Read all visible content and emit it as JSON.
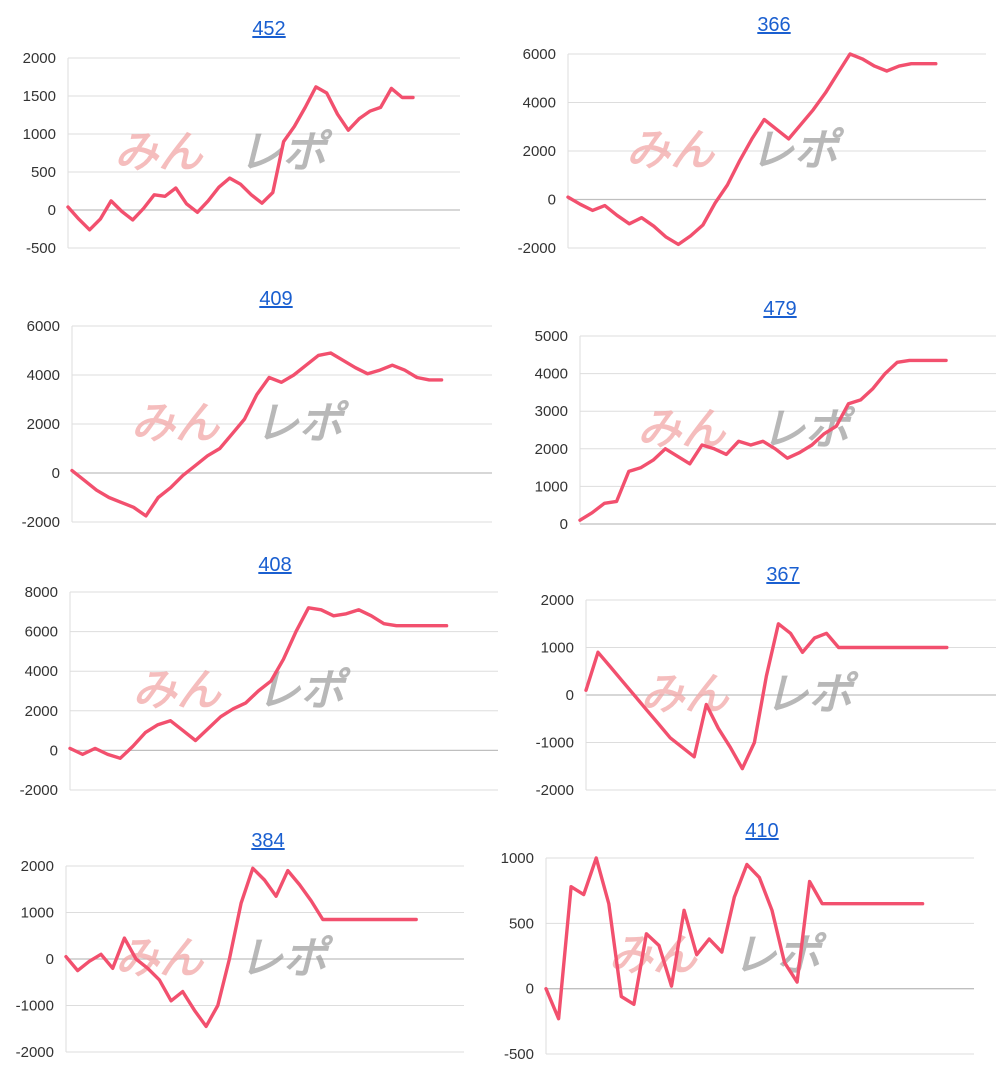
{
  "chart_data": [
    {
      "id": "c452",
      "type": "line",
      "title": "452",
      "ylim": [
        -500,
        2000
      ],
      "yticks": [
        -500,
        0,
        500,
        1000,
        1500,
        2000
      ],
      "grid": true,
      "watermark": "みんレポ",
      "x": [
        0,
        1,
        2,
        3,
        4,
        5,
        6,
        7,
        8,
        9,
        10,
        11,
        12,
        13,
        14,
        15,
        16,
        17,
        18,
        19,
        20,
        21,
        22,
        23,
        24,
        25,
        26,
        27,
        28,
        29,
        30,
        31,
        32
      ],
      "series": [
        {
          "values": [
            40,
            -120,
            -260,
            -120,
            120,
            -20,
            -130,
            20,
            200,
            180,
            290,
            80,
            -30,
            120,
            300,
            420,
            340,
            200,
            90,
            230,
            900,
            1100,
            1350,
            1620,
            1540,
            1260,
            1050,
            1200,
            1300,
            1350,
            1600,
            1480,
            1480
          ]
        }
      ]
    },
    {
      "id": "c366",
      "type": "line",
      "title": "366",
      "ylim": [
        -2000,
        6000
      ],
      "yticks": [
        -2000,
        0,
        2000,
        4000,
        6000
      ],
      "grid": true,
      "watermark": "みんレポ",
      "x": [
        0,
        1,
        2,
        3,
        4,
        5,
        6,
        7,
        8,
        9,
        10,
        11,
        12,
        13,
        14,
        15,
        16,
        17,
        18,
        19,
        20,
        21,
        22,
        23,
        24,
        25,
        26,
        27,
        28,
        29,
        30
      ],
      "series": [
        {
          "values": [
            100,
            -200,
            -450,
            -250,
            -650,
            -1000,
            -750,
            -1100,
            -1550,
            -1850,
            -1500,
            -1050,
            -150,
            600,
            1600,
            2500,
            3300,
            2900,
            2500,
            3100,
            3700,
            4400,
            5200,
            6000,
            5800,
            5500,
            5300,
            5500,
            5600,
            5600,
            5600
          ]
        }
      ]
    },
    {
      "id": "c409",
      "type": "line",
      "title": "409",
      "ylim": [
        -2000,
        6000
      ],
      "yticks": [
        -2000,
        0,
        2000,
        4000,
        6000
      ],
      "grid": true,
      "watermark": "みんレポ",
      "x": [
        0,
        1,
        2,
        3,
        4,
        5,
        6,
        7,
        8,
        9,
        10,
        11,
        12,
        13,
        14,
        15,
        16,
        17,
        18,
        19,
        20,
        21,
        22,
        23,
        24,
        25,
        26,
        27,
        28,
        29,
        30
      ],
      "series": [
        {
          "values": [
            100,
            -300,
            -700,
            -1000,
            -1200,
            -1400,
            -1750,
            -1000,
            -600,
            -100,
            300,
            700,
            1000,
            1600,
            2200,
            3200,
            3900,
            3700,
            4000,
            4400,
            4800,
            4900,
            4600,
            4300,
            4050,
            4200,
            4400,
            4200,
            3900,
            3800,
            3800
          ]
        }
      ]
    },
    {
      "id": "c479",
      "type": "line",
      "title": "479",
      "ylim": [
        0,
        5000
      ],
      "yticks": [
        0,
        1000,
        2000,
        3000,
        4000,
        5000
      ],
      "grid": true,
      "watermark": "みんレポ",
      "x": [
        0,
        1,
        2,
        3,
        4,
        5,
        6,
        7,
        8,
        9,
        10,
        11,
        12,
        13,
        14,
        15,
        16,
        17,
        18,
        19,
        20,
        21,
        22,
        23,
        24,
        25,
        26,
        27,
        28,
        29,
        30
      ],
      "series": [
        {
          "values": [
            100,
            300,
            550,
            600,
            1400,
            1500,
            1700,
            2000,
            1800,
            1600,
            2100,
            2000,
            1850,
            2200,
            2100,
            2200,
            2000,
            1750,
            1900,
            2100,
            2400,
            2600,
            3200,
            3300,
            3600,
            4000,
            4300,
            4350,
            4350,
            4350,
            4350
          ]
        }
      ]
    },
    {
      "id": "c408",
      "type": "line",
      "title": "408",
      "ylim": [
        -2000,
        8000
      ],
      "yticks": [
        -2000,
        0,
        2000,
        4000,
        6000,
        8000
      ],
      "grid": true,
      "watermark": "みんレポ",
      "x": [
        0,
        1,
        2,
        3,
        4,
        5,
        6,
        7,
        8,
        9,
        10,
        11,
        12,
        13,
        14,
        15,
        16,
        17,
        18,
        19,
        20,
        21,
        22,
        23,
        24,
        25,
        26,
        27,
        28,
        29,
        30
      ],
      "series": [
        {
          "values": [
            100,
            -200,
            100,
            -200,
            -400,
            200,
            900,
            1300,
            1500,
            1000,
            500,
            1100,
            1700,
            2100,
            2400,
            3000,
            3500,
            4600,
            6000,
            7200,
            7100,
            6800,
            6900,
            7100,
            6800,
            6400,
            6300,
            6300,
            6300,
            6300,
            6300
          ]
        }
      ]
    },
    {
      "id": "c367",
      "type": "line",
      "title": "367",
      "ylim": [
        -2000,
        2000
      ],
      "yticks": [
        -2000,
        -1000,
        0,
        1000,
        2000
      ],
      "grid": true,
      "watermark": "みんレポ",
      "x": [
        0,
        1,
        2,
        3,
        4,
        5,
        6,
        7,
        8,
        9,
        10,
        11,
        12,
        13,
        14,
        15,
        16,
        17,
        18,
        19,
        20,
        21,
        22,
        23,
        24,
        25,
        26,
        27,
        28,
        29,
        30
      ],
      "series": [
        {
          "values": [
            100,
            900,
            600,
            300,
            0,
            -300,
            -600,
            -900,
            -1100,
            -1300,
            -200,
            -700,
            -1100,
            -1550,
            -1000,
            400,
            1500,
            1300,
            900,
            1200,
            1300,
            1000,
            1000,
            1000,
            1000,
            1000,
            1000,
            1000,
            1000,
            1000,
            1000
          ]
        }
      ]
    },
    {
      "id": "c384",
      "type": "line",
      "title": "384",
      "ylim": [
        -2000,
        2000
      ],
      "yticks": [
        -2000,
        -1000,
        0,
        1000,
        2000
      ],
      "grid": true,
      "watermark": "みんレポ",
      "x": [
        0,
        1,
        2,
        3,
        4,
        5,
        6,
        7,
        8,
        9,
        10,
        11,
        12,
        13,
        14,
        15,
        16,
        17,
        18,
        19,
        20,
        21,
        22,
        23,
        24,
        25,
        26,
        27,
        28,
        29,
        30
      ],
      "series": [
        {
          "values": [
            50,
            -250,
            -50,
            100,
            -200,
            450,
            0,
            -200,
            -450,
            -900,
            -700,
            -1100,
            -1450,
            -1000,
            0,
            1200,
            1950,
            1700,
            1350,
            1900,
            1600,
            1250,
            850,
            850,
            850,
            850,
            850,
            850,
            850,
            850,
            850
          ]
        }
      ]
    },
    {
      "id": "c410",
      "type": "line",
      "title": "410",
      "ylim": [
        -500,
        1000
      ],
      "yticks": [
        -500,
        0,
        500,
        1000
      ],
      "grid": true,
      "watermark": "みんレポ",
      "x": [
        0,
        1,
        2,
        3,
        4,
        5,
        6,
        7,
        8,
        9,
        10,
        11,
        12,
        13,
        14,
        15,
        16,
        17,
        18,
        19,
        20,
        21,
        22,
        23,
        24,
        25,
        26,
        27,
        28,
        29,
        30
      ],
      "series": [
        {
          "values": [
            0,
            -230,
            780,
            720,
            1000,
            650,
            -60,
            -120,
            420,
            330,
            20,
            600,
            260,
            380,
            280,
            700,
            950,
            850,
            600,
            200,
            50,
            820,
            650,
            650,
            650,
            650,
            650,
            650,
            650,
            650,
            650
          ]
        }
      ]
    }
  ]
}
